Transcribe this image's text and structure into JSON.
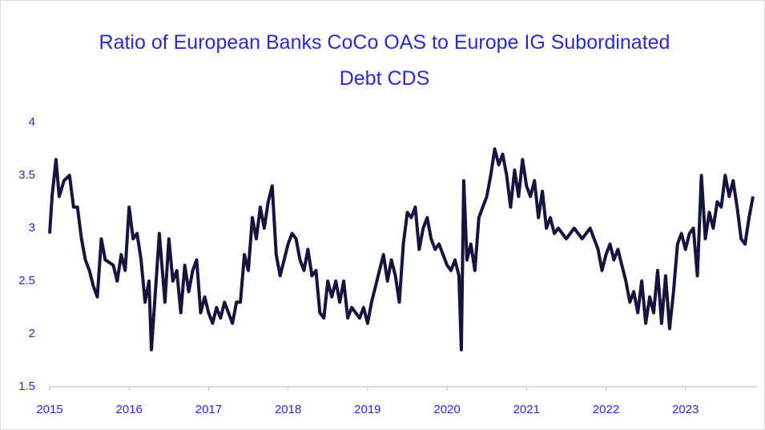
{
  "chart_data": {
    "type": "line",
    "title": "Ratio of European Banks CoCo OAS to Europe IG Subordinated Debt CDS",
    "x": [
      2015.0,
      2015.03,
      2015.08,
      2015.12,
      2015.18,
      2015.25,
      2015.3,
      2015.35,
      2015.4,
      2015.45,
      2015.5,
      2015.55,
      2015.6,
      2015.65,
      2015.7,
      2015.8,
      2015.85,
      2015.9,
      2015.95,
      2016.0,
      2016.05,
      2016.1,
      2016.15,
      2016.2,
      2016.25,
      2016.28,
      2016.33,
      2016.38,
      2016.45,
      2016.5,
      2016.55,
      2016.6,
      2016.65,
      2016.7,
      2016.75,
      2016.8,
      2016.85,
      2016.9,
      2016.95,
      2017.0,
      2017.05,
      2017.1,
      2017.15,
      2017.2,
      2017.25,
      2017.3,
      2017.35,
      2017.4,
      2017.45,
      2017.5,
      2017.55,
      2017.6,
      2017.65,
      2017.7,
      2017.75,
      2017.8,
      2017.85,
      2017.9,
      2017.95,
      2018.0,
      2018.05,
      2018.1,
      2018.15,
      2018.2,
      2018.25,
      2018.3,
      2018.35,
      2018.4,
      2018.45,
      2018.5,
      2018.55,
      2018.6,
      2018.65,
      2018.7,
      2018.75,
      2018.8,
      2018.85,
      2018.9,
      2018.95,
      2019.0,
      2019.05,
      2019.1,
      2019.15,
      2019.2,
      2019.25,
      2019.3,
      2019.35,
      2019.4,
      2019.45,
      2019.5,
      2019.55,
      2019.6,
      2019.65,
      2019.7,
      2019.75,
      2019.8,
      2019.85,
      2019.9,
      2019.95,
      2020.0,
      2020.05,
      2020.1,
      2020.15,
      2020.18,
      2020.21,
      2020.25,
      2020.3,
      2020.35,
      2020.4,
      2020.45,
      2020.5,
      2020.55,
      2020.6,
      2020.65,
      2020.7,
      2020.75,
      2020.8,
      2020.85,
      2020.9,
      2020.95,
      2021.0,
      2021.05,
      2021.1,
      2021.15,
      2021.2,
      2021.25,
      2021.3,
      2021.35,
      2021.4,
      2021.5,
      2021.6,
      2021.7,
      2021.8,
      2021.9,
      2021.95,
      2022.0,
      2022.05,
      2022.1,
      2022.15,
      2022.2,
      2022.25,
      2022.3,
      2022.35,
      2022.4,
      2022.45,
      2022.5,
      2022.55,
      2022.6,
      2022.65,
      2022.7,
      2022.75,
      2022.8,
      2022.85,
      2022.9,
      2022.95,
      2023.0,
      2023.05,
      2023.1,
      2023.15,
      2023.2,
      2023.25,
      2023.3,
      2023.35,
      2023.4,
      2023.45,
      2023.5,
      2023.55,
      2023.6,
      2023.65,
      2023.7,
      2023.75,
      2023.8,
      2023.85
    ],
    "values": [
      2.95,
      3.3,
      3.65,
      3.3,
      3.45,
      3.5,
      3.2,
      3.2,
      2.9,
      2.7,
      2.6,
      2.45,
      2.35,
      2.9,
      2.7,
      2.65,
      2.5,
      2.75,
      2.6,
      3.2,
      2.9,
      2.95,
      2.7,
      2.3,
      2.5,
      1.85,
      2.4,
      2.95,
      2.3,
      2.9,
      2.5,
      2.6,
      2.2,
      2.65,
      2.4,
      2.6,
      2.7,
      2.2,
      2.35,
      2.2,
      2.1,
      2.25,
      2.15,
      2.3,
      2.2,
      2.1,
      2.3,
      2.3,
      2.75,
      2.6,
      3.1,
      2.9,
      3.2,
      3.0,
      3.25,
      3.4,
      2.75,
      2.55,
      2.7,
      2.85,
      2.95,
      2.9,
      2.7,
      2.6,
      2.8,
      2.55,
      2.6,
      2.2,
      2.15,
      2.5,
      2.35,
      2.5,
      2.3,
      2.5,
      2.15,
      2.25,
      2.2,
      2.15,
      2.25,
      2.1,
      2.3,
      2.45,
      2.6,
      2.75,
      2.5,
      2.7,
      2.55,
      2.3,
      2.85,
      3.15,
      3.1,
      3.2,
      2.8,
      3.0,
      3.1,
      2.9,
      2.8,
      2.85,
      2.75,
      2.65,
      2.6,
      2.7,
      2.55,
      1.85,
      3.45,
      2.7,
      2.85,
      2.6,
      3.1,
      3.2,
      3.3,
      3.5,
      3.75,
      3.6,
      3.7,
      3.5,
      3.2,
      3.55,
      3.3,
      3.65,
      3.4,
      3.3,
      3.45,
      3.1,
      3.35,
      3.0,
      3.1,
      2.95,
      3.0,
      2.9,
      3.0,
      2.9,
      3.0,
      2.8,
      2.6,
      2.75,
      2.85,
      2.7,
      2.8,
      2.65,
      2.5,
      2.3,
      2.4,
      2.2,
      2.5,
      2.1,
      2.35,
      2.2,
      2.6,
      2.1,
      2.55,
      2.05,
      2.4,
      2.85,
      2.95,
      2.8,
      2.95,
      3.0,
      2.55,
      3.5,
      2.9,
      3.15,
      3.0,
      3.25,
      3.2,
      3.5,
      3.3,
      3.45,
      3.2,
      2.9,
      2.85,
      3.1,
      3.3
    ],
    "color": "#14143f",
    "xlim": [
      2015,
      2023.9
    ],
    "xticks": [
      2015,
      2016,
      2017,
      2018,
      2019,
      2020,
      2021,
      2022,
      2023
    ],
    "ylim": [
      1.5,
      4
    ],
    "yticks": [
      1.5,
      2,
      2.5,
      3,
      3.5,
      4
    ]
  }
}
